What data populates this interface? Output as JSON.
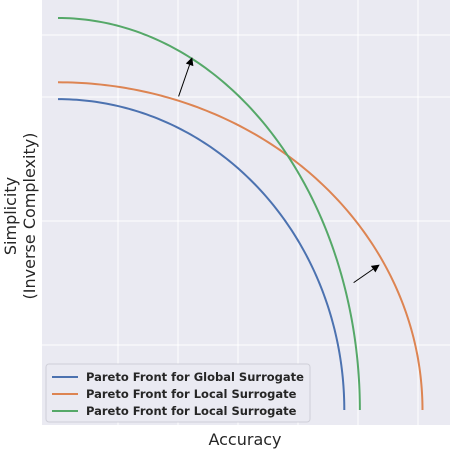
{
  "chart_data": {
    "type": "line",
    "title": "",
    "xlabel": "Accuracy",
    "ylabel_line1": "Simplicity",
    "ylabel_line2": "(Inverse Complexity)",
    "xlim": [
      0,
      1
    ],
    "ylim": [
      0,
      1
    ],
    "grid": true,
    "tick_labels_shown": false,
    "legend_position": "lower-left",
    "series": [
      {
        "name": "Pareto Front for Global Surrogate",
        "color": "#4c72b0",
        "shape": "quarter-ellipse",
        "x_max": 0.736,
        "y_max": 0.793
      },
      {
        "name": "Pareto Front for Local Surrogate",
        "color": "#dd8452",
        "shape": "quarter-ellipse",
        "x_max": 0.937,
        "y_max": 0.836
      },
      {
        "name": "Pareto Front for Local Surrogate",
        "color": "#55a868",
        "shape": "quarter-ellipse",
        "x_max": 0.776,
        "y_max": 1.0
      }
    ],
    "annotations": [
      {
        "type": "arrow",
        "from": [
          0.31,
          0.8
        ],
        "to": [
          0.345,
          0.9
        ]
      },
      {
        "type": "arrow",
        "from": [
          0.76,
          0.325
        ],
        "to": [
          0.827,
          0.371
        ]
      }
    ]
  }
}
